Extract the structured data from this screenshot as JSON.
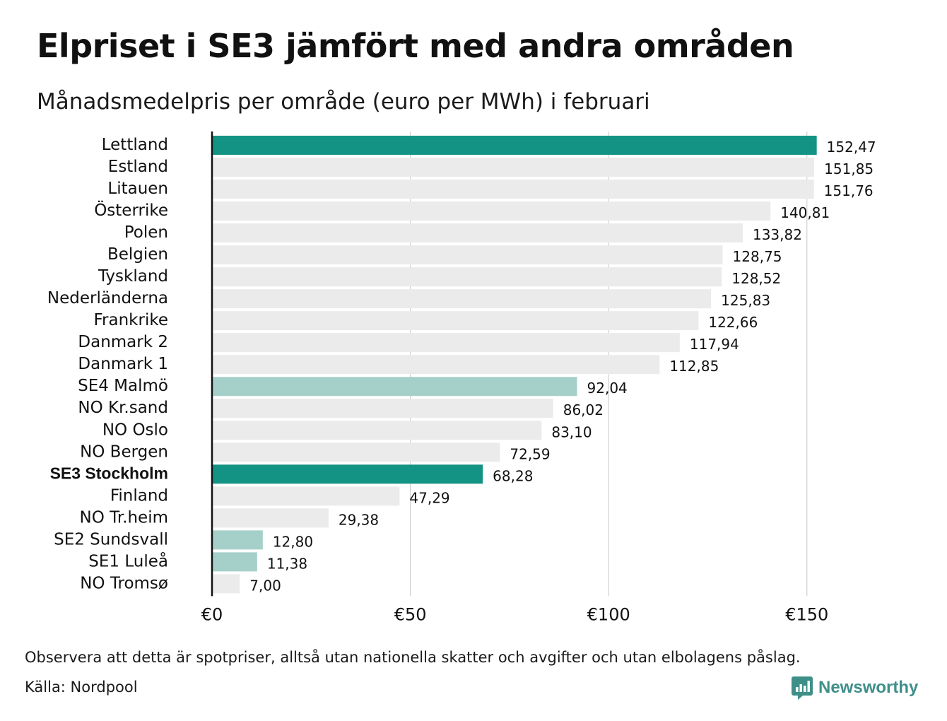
{
  "title": "Elpriset i SE3 jämfört med andra områden",
  "subtitle": "Månadsmedelpris per område (euro per MWh) i februari",
  "footer": {
    "note": "Observera att detta är spotpriser, alltså utan nationella skatter och avgifter och utan elbolagens påslag.",
    "source": "Källa: Nordpool",
    "brand": "Newsworthy"
  },
  "colors": {
    "default": "#ebebeb",
    "highlight": "#139384",
    "comparison": "#a5d0ca",
    "axis": "#111111",
    "grid": "#c8c8c8",
    "brand": "#3f8f89"
  },
  "chart_data": {
    "type": "bar",
    "orientation": "horizontal",
    "categories": [
      "Lettland",
      "Estland",
      "Litauen",
      "Österrike",
      "Polen",
      "Belgien",
      "Tyskland",
      "Nederländerna",
      "Frankrike",
      "Danmark 2",
      "Danmark 1",
      "SE4 Malmö",
      "NO Kr.sand",
      "NO Oslo",
      "NO Bergen",
      "SE3 Stockholm",
      "Finland",
      "NO Tr.heim",
      "SE2 Sundsvall",
      "SE1 Luleå",
      "NO Tromsø"
    ],
    "values": [
      152.47,
      151.85,
      151.76,
      140.81,
      133.82,
      128.75,
      128.52,
      125.83,
      122.66,
      117.94,
      112.85,
      92.04,
      86.02,
      83.1,
      72.59,
      68.28,
      47.29,
      29.38,
      12.8,
      11.38,
      7.0
    ],
    "value_labels": [
      "152,47",
      "151,85",
      "151,76",
      "140,81",
      "133,82",
      "128,75",
      "128,52",
      "125,83",
      "122,66",
      "117,94",
      "112,85",
      "92,04",
      "86,02",
      "83,10",
      "72,59",
      "68,28",
      "47,29",
      "29,38",
      "12,80",
      "11,38",
      "7,00"
    ],
    "highlight": [
      "highlight",
      "default",
      "default",
      "default",
      "default",
      "default",
      "default",
      "default",
      "default",
      "default",
      "default",
      "comparison",
      "default",
      "default",
      "default",
      "highlight",
      "default",
      "default",
      "comparison",
      "comparison",
      "default"
    ],
    "xlim": [
      0,
      160
    ],
    "xticks": [
      0,
      50,
      100,
      150
    ],
    "xtick_labels": [
      "€0",
      "€50",
      "€100",
      "€150"
    ],
    "grid": true,
    "legend": "none"
  }
}
